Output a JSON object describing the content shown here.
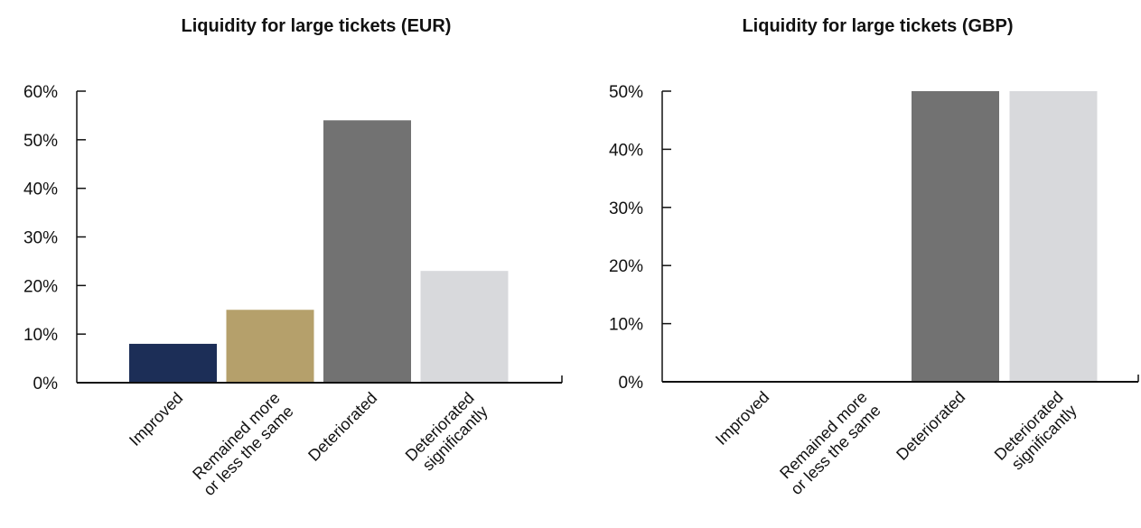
{
  "chart_data": [
    {
      "type": "bar",
      "title": "Liquidity for large tickets (EUR)",
      "xlabel": "",
      "ylabel": "",
      "categories": [
        "Improved",
        "Remained more or less the same",
        "Deteriorated",
        "Deteriorated significantly"
      ],
      "category_lines": [
        [
          "Improved"
        ],
        [
          "Remained more",
          "or less the same"
        ],
        [
          "Deteriorated"
        ],
        [
          "Deteriorated",
          "significantly"
        ]
      ],
      "values": [
        8,
        15,
        54,
        23
      ],
      "colors": [
        "#1c2e57",
        "#b5a06b",
        "#727272",
        "#d8d9dc"
      ],
      "yticks": [
        "0%",
        "10%",
        "20%",
        "30%",
        "40%",
        "50%",
        "60%"
      ],
      "ylim": [
        0,
        60
      ],
      "grid": false,
      "legend": "none"
    },
    {
      "type": "bar",
      "title": "Liquidity for large tickets (GBP)",
      "xlabel": "",
      "ylabel": "",
      "categories": [
        "Improved",
        "Remained more or less the same",
        "Deteriorated",
        "Deteriorated significantly"
      ],
      "category_lines": [
        [
          "Improved"
        ],
        [
          "Remained more",
          "or less the same"
        ],
        [
          "Deteriorated"
        ],
        [
          "Deteriorated",
          "significantly"
        ]
      ],
      "values": [
        0,
        0,
        50,
        50
      ],
      "colors": [
        "#1c2e57",
        "#b5a06b",
        "#727272",
        "#d8d9dc"
      ],
      "yticks": [
        "0%",
        "10%",
        "20%",
        "30%",
        "40%",
        "50%"
      ],
      "ylim": [
        0,
        50
      ],
      "grid": false,
      "legend": "none"
    }
  ]
}
